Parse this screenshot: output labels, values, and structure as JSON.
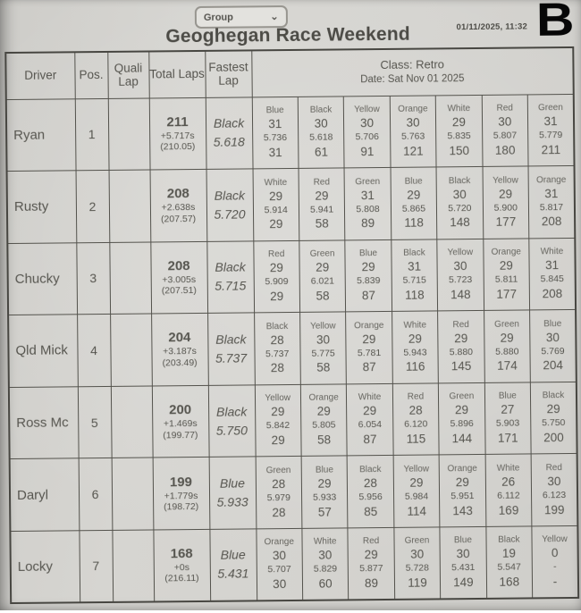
{
  "chrome": {
    "group_label": "Group",
    "timestamp": "01/11/2025, 11:32",
    "corner_letter": "B"
  },
  "title": "Geoghegan Race Weekend",
  "table": {
    "headers": {
      "driver": "Driver",
      "pos": "Pos.",
      "quali": "Quali Lap",
      "total": "Total Laps",
      "fastest": "Fastest Lap",
      "class_info": "Class: Retro",
      "date_info": "Date: Sat Nov 01 2025"
    },
    "rows": [
      {
        "driver": "Ryan",
        "pos": "1",
        "quali": "",
        "total": "211",
        "gap": "+5.717s",
        "average": "(210.05)",
        "fastest_color": "Black",
        "fastest_time": "5.618",
        "segments": [
          {
            "color": "Blue",
            "laps": "31",
            "best": "5.736",
            "cum": "31"
          },
          {
            "color": "Black",
            "laps": "30",
            "best": "5.618",
            "cum": "61"
          },
          {
            "color": "Yellow",
            "laps": "30",
            "best": "5.706",
            "cum": "91"
          },
          {
            "color": "Orange",
            "laps": "30",
            "best": "5.763",
            "cum": "121"
          },
          {
            "color": "White",
            "laps": "29",
            "best": "5.835",
            "cum": "150"
          },
          {
            "color": "Red",
            "laps": "30",
            "best": "5.807",
            "cum": "180"
          },
          {
            "color": "Green",
            "laps": "31",
            "best": "5.779",
            "cum": "211"
          }
        ]
      },
      {
        "driver": "Rusty",
        "pos": "2",
        "quali": "",
        "total": "208",
        "gap": "+2.638s",
        "average": "(207.57)",
        "fastest_color": "Black",
        "fastest_time": "5.720",
        "segments": [
          {
            "color": "White",
            "laps": "29",
            "best": "5.914",
            "cum": "29"
          },
          {
            "color": "Red",
            "laps": "29",
            "best": "5.941",
            "cum": "58"
          },
          {
            "color": "Green",
            "laps": "31",
            "best": "5.808",
            "cum": "89"
          },
          {
            "color": "Blue",
            "laps": "29",
            "best": "5.865",
            "cum": "118"
          },
          {
            "color": "Black",
            "laps": "30",
            "best": "5.720",
            "cum": "148"
          },
          {
            "color": "Yellow",
            "laps": "29",
            "best": "5.900",
            "cum": "177"
          },
          {
            "color": "Orange",
            "laps": "31",
            "best": "5.817",
            "cum": "208"
          }
        ]
      },
      {
        "driver": "Chucky",
        "pos": "3",
        "quali": "",
        "total": "208",
        "gap": "+3.005s",
        "average": "(207.51)",
        "fastest_color": "Black",
        "fastest_time": "5.715",
        "segments": [
          {
            "color": "Red",
            "laps": "29",
            "best": "5.909",
            "cum": "29"
          },
          {
            "color": "Green",
            "laps": "29",
            "best": "6.021",
            "cum": "58"
          },
          {
            "color": "Blue",
            "laps": "29",
            "best": "5.839",
            "cum": "87"
          },
          {
            "color": "Black",
            "laps": "31",
            "best": "5.715",
            "cum": "118"
          },
          {
            "color": "Yellow",
            "laps": "30",
            "best": "5.723",
            "cum": "148"
          },
          {
            "color": "Orange",
            "laps": "29",
            "best": "5.811",
            "cum": "177"
          },
          {
            "color": "White",
            "laps": "31",
            "best": "5.845",
            "cum": "208"
          }
        ]
      },
      {
        "driver": "Qld Mick",
        "pos": "4",
        "quali": "",
        "total": "204",
        "gap": "+3.187s",
        "average": "(203.49)",
        "fastest_color": "Black",
        "fastest_time": "5.737",
        "segments": [
          {
            "color": "Black",
            "laps": "28",
            "best": "5.737",
            "cum": "28"
          },
          {
            "color": "Yellow",
            "laps": "30",
            "best": "5.775",
            "cum": "58"
          },
          {
            "color": "Orange",
            "laps": "29",
            "best": "5.781",
            "cum": "87"
          },
          {
            "color": "White",
            "laps": "29",
            "best": "5.943",
            "cum": "116"
          },
          {
            "color": "Red",
            "laps": "29",
            "best": "5.880",
            "cum": "145"
          },
          {
            "color": "Green",
            "laps": "29",
            "best": "5.880",
            "cum": "174"
          },
          {
            "color": "Blue",
            "laps": "30",
            "best": "5.769",
            "cum": "204"
          }
        ]
      },
      {
        "driver": "Ross Mc",
        "pos": "5",
        "quali": "",
        "total": "200",
        "gap": "+1.469s",
        "average": "(199.77)",
        "fastest_color": "Black",
        "fastest_time": "5.750",
        "segments": [
          {
            "color": "Yellow",
            "laps": "29",
            "best": "5.842",
            "cum": "29"
          },
          {
            "color": "Orange",
            "laps": "29",
            "best": "5.805",
            "cum": "58"
          },
          {
            "color": "White",
            "laps": "29",
            "best": "6.054",
            "cum": "87"
          },
          {
            "color": "Red",
            "laps": "28",
            "best": "6.120",
            "cum": "115"
          },
          {
            "color": "Green",
            "laps": "29",
            "best": "5.896",
            "cum": "144"
          },
          {
            "color": "Blue",
            "laps": "27",
            "best": "5.903",
            "cum": "171"
          },
          {
            "color": "Black",
            "laps": "29",
            "best": "5.750",
            "cum": "200"
          }
        ]
      },
      {
        "driver": "Daryl",
        "pos": "6",
        "quali": "",
        "total": "199",
        "gap": "+1.779s",
        "average": "(198.72)",
        "fastest_color": "Blue",
        "fastest_time": "5.933",
        "segments": [
          {
            "color": "Green",
            "laps": "28",
            "best": "5.979",
            "cum": "28"
          },
          {
            "color": "Blue",
            "laps": "29",
            "best": "5.933",
            "cum": "57"
          },
          {
            "color": "Black",
            "laps": "28",
            "best": "5.956",
            "cum": "85"
          },
          {
            "color": "Yellow",
            "laps": "29",
            "best": "5.984",
            "cum": "114"
          },
          {
            "color": "Orange",
            "laps": "29",
            "best": "5.951",
            "cum": "143"
          },
          {
            "color": "White",
            "laps": "26",
            "best": "6.112",
            "cum": "169"
          },
          {
            "color": "Red",
            "laps": "30",
            "best": "6.123",
            "cum": "199"
          }
        ]
      },
      {
        "driver": "Locky",
        "pos": "7",
        "quali": "",
        "total": "168",
        "gap": "+0s",
        "average": "(216.11)",
        "fastest_color": "Blue",
        "fastest_time": "5.431",
        "segments": [
          {
            "color": "Orange",
            "laps": "30",
            "best": "5.707",
            "cum": "30"
          },
          {
            "color": "White",
            "laps": "30",
            "best": "5.829",
            "cum": "60"
          },
          {
            "color": "Red",
            "laps": "29",
            "best": "5.877",
            "cum": "89"
          },
          {
            "color": "Green",
            "laps": "30",
            "best": "5.728",
            "cum": "119"
          },
          {
            "color": "Blue",
            "laps": "30",
            "best": "5.431",
            "cum": "149"
          },
          {
            "color": "Black",
            "laps": "19",
            "best": "5.547",
            "cum": "168"
          },
          {
            "color": "Yellow",
            "laps": "0",
            "best": "-",
            "cum": "-"
          }
        ]
      }
    ]
  }
}
